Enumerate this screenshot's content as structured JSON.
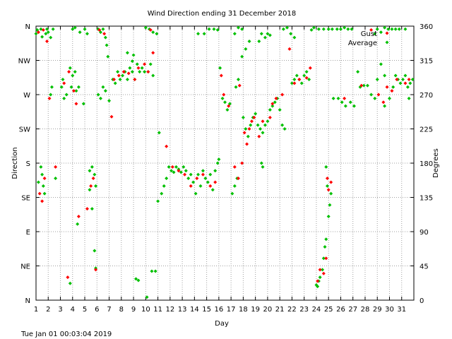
{
  "chart_data": {
    "type": "scatter",
    "title": "Wind Direction ending 31 December 2018",
    "xlabel": "Day",
    "ylabel_left": "Direction",
    "ylabel_right": "Degrees",
    "footer": "Tue Jan 01 00:03:04 2019",
    "xlim": [
      1,
      32
    ],
    "ylim": [
      0,
      360
    ],
    "x_ticks": [
      "1",
      "2",
      "3",
      "4",
      "5",
      "6",
      "7",
      "8",
      "9",
      "10",
      "11",
      "12",
      "13",
      "14",
      "15",
      "16",
      "17",
      "18",
      "19",
      "20",
      "21",
      "22",
      "23",
      "24",
      "25",
      "26",
      "27",
      "28",
      "29",
      "30",
      "31"
    ],
    "y_ticks_left": [
      "N",
      "NE",
      "E",
      "SE",
      "S",
      "SW",
      "W",
      "NW",
      "N"
    ],
    "y_ticks_right": [
      "0",
      "45",
      "90",
      "135",
      "180",
      "225",
      "270",
      "315",
      "360"
    ],
    "grid": true,
    "legend_placement": "top-right",
    "series": [
      {
        "name": "Gust",
        "color": "#ff0000",
        "points": [
          [
            1.2,
            352
          ],
          [
            1.6,
            355
          ],
          [
            1.9,
            340
          ],
          [
            1.3,
            140
          ],
          [
            1.5,
            130
          ],
          [
            1.7,
            160
          ],
          [
            2.1,
            265
          ],
          [
            2.6,
            175
          ],
          [
            3.3,
            285
          ],
          [
            3.7,
            300
          ],
          [
            3.6,
            30
          ],
          [
            4.1,
            275
          ],
          [
            4.3,
            258
          ],
          [
            4.5,
            110
          ],
          [
            5.2,
            120
          ],
          [
            5.5,
            150
          ],
          [
            5.7,
            160
          ],
          [
            5.9,
            40
          ],
          [
            6.2,
            355
          ],
          [
            6.6,
            350
          ],
          [
            7.2,
            241
          ],
          [
            7.4,
            290
          ],
          [
            7.8,
            295
          ],
          [
            8.2,
            300
          ],
          [
            8.6,
            298
          ],
          [
            9.1,
            290
          ],
          [
            9.4,
            305
          ],
          [
            9.9,
            310
          ],
          [
            10.2,
            300
          ],
          [
            10.6,
            325
          ],
          [
            10.4,
            355
          ],
          [
            11.7,
            202
          ],
          [
            12.2,
            175
          ],
          [
            12.7,
            170
          ],
          [
            13.2,
            165
          ],
          [
            13.7,
            150
          ],
          [
            14.2,
            160
          ],
          [
            14.7,
            165
          ],
          [
            15.3,
            150
          ],
          [
            15.7,
            155
          ],
          [
            16.2,
            295
          ],
          [
            16.4,
            270
          ],
          [
            16.8,
            255
          ],
          [
            17.3,
            175
          ],
          [
            17.6,
            160
          ],
          [
            17.7,
            282
          ],
          [
            17.9,
            180
          ],
          [
            18.1,
            220
          ],
          [
            18.3,
            205
          ],
          [
            18.5,
            225
          ],
          [
            18.7,
            235
          ],
          [
            18.9,
            240
          ],
          [
            19.3,
            215
          ],
          [
            19.6,
            235
          ],
          [
            20.2,
            240
          ],
          [
            20.4,
            258
          ],
          [
            20.7,
            265
          ],
          [
            21.2,
            270
          ],
          [
            21.8,
            330
          ],
          [
            22.2,
            285
          ],
          [
            22.6,
            290
          ],
          [
            23.2,
            292
          ],
          [
            23.5,
            305
          ],
          [
            24.1,
            25
          ],
          [
            24.3,
            40
          ],
          [
            24.6,
            35
          ],
          [
            24.8,
            55
          ],
          [
            25.0,
            145
          ],
          [
            25.2,
            155
          ],
          [
            24.9,
            160
          ],
          [
            26.3,
            265
          ],
          [
            27.7,
            282
          ],
          [
            28.5,
            355
          ],
          [
            29.1,
            270
          ],
          [
            29.5,
            260
          ],
          [
            29.8,
            280
          ],
          [
            30.2,
            275
          ],
          [
            30.6,
            290
          ],
          [
            31.3,
            285
          ],
          [
            31.6,
            290
          ]
        ]
      },
      {
        "name": "Average",
        "color": "#00c000",
        "points": [
          [
            1.0,
            350
          ],
          [
            1.1,
            355
          ],
          [
            1.4,
            356
          ],
          [
            1.5,
            346
          ],
          [
            1.8,
            350
          ],
          [
            1.9,
            356
          ],
          [
            2.0,
            352
          ],
          [
            2.2,
            345
          ],
          [
            2.4,
            356
          ],
          [
            1.4,
            175
          ],
          [
            1.5,
            165
          ],
          [
            1.6,
            150
          ],
          [
            1.7,
            140
          ],
          [
            1.2,
            155
          ],
          [
            2.6,
            160
          ],
          [
            2.2,
            270
          ],
          [
            2.3,
            280
          ],
          [
            3.1,
            280
          ],
          [
            3.2,
            290
          ],
          [
            3.5,
            270
          ],
          [
            3.8,
            305
          ],
          [
            3.9,
            280
          ],
          [
            3.3,
            265
          ],
          [
            4.0,
            295
          ],
          [
            4.2,
            300
          ],
          [
            4.3,
            275
          ],
          [
            4.5,
            280
          ],
          [
            4.4,
            100
          ],
          [
            3.8,
            22
          ],
          [
            4.0,
            356
          ],
          [
            4.2,
            358
          ],
          [
            4.6,
            352
          ],
          [
            5.0,
            356
          ],
          [
            5.2,
            350
          ],
          [
            4.9,
            258
          ],
          [
            5.4,
            170
          ],
          [
            5.6,
            175
          ],
          [
            5.8,
            165
          ],
          [
            5.9,
            150
          ],
          [
            5.4,
            145
          ],
          [
            5.6,
            120
          ],
          [
            5.8,
            65
          ],
          [
            5.9,
            42
          ],
          [
            6.1,
            356
          ],
          [
            6.3,
            352
          ],
          [
            6.5,
            356
          ],
          [
            6.7,
            345
          ],
          [
            6.8,
            335
          ],
          [
            6.9,
            320
          ],
          [
            6.1,
            270
          ],
          [
            6.3,
            265
          ],
          [
            6.5,
            280
          ],
          [
            6.7,
            275
          ],
          [
            7.0,
            262
          ],
          [
            7.3,
            290
          ],
          [
            7.5,
            285
          ],
          [
            7.7,
            300
          ],
          [
            7.9,
            290
          ],
          [
            8.1,
            295
          ],
          [
            8.3,
            300
          ],
          [
            8.5,
            290
          ],
          [
            8.7,
            305
          ],
          [
            8.9,
            300
          ],
          [
            9.1,
            290
          ],
          [
            9.3,
            310
          ],
          [
            9.5,
            300
          ],
          [
            9.7,
            305
          ],
          [
            9.9,
            300
          ],
          [
            9.0,
            322
          ],
          [
            8.5,
            325
          ],
          [
            8.9,
            314
          ],
          [
            9.2,
            28
          ],
          [
            9.4,
            26
          ],
          [
            10.0,
            358
          ],
          [
            10.3,
            356
          ],
          [
            10.6,
            352
          ],
          [
            10.1,
            4
          ],
          [
            10.5,
            38
          ],
          [
            10.8,
            38
          ],
          [
            10.2,
            300
          ],
          [
            10.4,
            310
          ],
          [
            10.6,
            295
          ],
          [
            10.9,
            350
          ],
          [
            11.1,
            220
          ],
          [
            11.0,
            130
          ],
          [
            11.3,
            140
          ],
          [
            11.5,
            150
          ],
          [
            11.7,
            160
          ],
          [
            11.9,
            175
          ],
          [
            12.1,
            170
          ],
          [
            12.3,
            168
          ],
          [
            12.5,
            175
          ],
          [
            12.7,
            172
          ],
          [
            12.9,
            168
          ],
          [
            13.1,
            175
          ],
          [
            13.3,
            170
          ],
          [
            13.5,
            160
          ],
          [
            13.7,
            165
          ],
          [
            13.9,
            155
          ],
          [
            14.1,
            140
          ],
          [
            14.3,
            165
          ],
          [
            14.5,
            150
          ],
          [
            14.7,
            170
          ],
          [
            14.9,
            160
          ],
          [
            15.1,
            155
          ],
          [
            15.3,
            165
          ],
          [
            15.5,
            145
          ],
          [
            15.7,
            170
          ],
          [
            15.9,
            180
          ],
          [
            16.0,
            185
          ],
          [
            14.3,
            350
          ],
          [
            14.8,
            350
          ],
          [
            15.2,
            356
          ],
          [
            15.6,
            356
          ],
          [
            15.9,
            355
          ],
          [
            16.1,
            305
          ],
          [
            16.3,
            265
          ],
          [
            16.5,
            260
          ],
          [
            16.7,
            250
          ],
          [
            16.9,
            258
          ],
          [
            17.1,
            140
          ],
          [
            17.3,
            150
          ],
          [
            17.5,
            160
          ],
          [
            17.3,
            350
          ],
          [
            17.6,
            358
          ],
          [
            17.9,
            356
          ],
          [
            17.4,
            280
          ],
          [
            17.6,
            290
          ],
          [
            17.9,
            320
          ],
          [
            18.0,
            240
          ],
          [
            18.2,
            225
          ],
          [
            18.4,
            215
          ],
          [
            18.6,
            230
          ],
          [
            18.8,
            240
          ],
          [
            19.0,
            245
          ],
          [
            19.2,
            230
          ],
          [
            19.4,
            225
          ],
          [
            19.6,
            220
          ],
          [
            19.8,
            230
          ],
          [
            19.5,
            180
          ],
          [
            19.6,
            175
          ],
          [
            18.2,
            330
          ],
          [
            18.5,
            340
          ],
          [
            19.3,
            340
          ],
          [
            19.5,
            350
          ],
          [
            19.8,
            345
          ],
          [
            20.0,
            350
          ],
          [
            20.2,
            348
          ],
          [
            20.0,
            235
          ],
          [
            20.2,
            250
          ],
          [
            20.4,
            255
          ],
          [
            20.6,
            260
          ],
          [
            20.8,
            265
          ],
          [
            21.0,
            250
          ],
          [
            21.2,
            230
          ],
          [
            21.4,
            225
          ],
          [
            21.3,
            356
          ],
          [
            21.6,
            358
          ],
          [
            21.9,
            350
          ],
          [
            22.0,
            285
          ],
          [
            22.2,
            290
          ],
          [
            22.4,
            295
          ],
          [
            22.6,
            290
          ],
          [
            22.8,
            285
          ],
          [
            23.0,
            295
          ],
          [
            23.2,
            300
          ],
          [
            23.4,
            290
          ],
          [
            23.6,
            355
          ],
          [
            23.8,
            358
          ],
          [
            22.2,
            345
          ],
          [
            24.0,
            20
          ],
          [
            24.1,
            18
          ],
          [
            24.2,
            25
          ],
          [
            24.3,
            30
          ],
          [
            24.5,
            40
          ],
          [
            24.6,
            55
          ],
          [
            24.7,
            70
          ],
          [
            24.8,
            80
          ],
          [
            25.0,
            110
          ],
          [
            25.1,
            125
          ],
          [
            25.2,
            140
          ],
          [
            24.8,
            175
          ],
          [
            24.9,
            150
          ],
          [
            24.2,
            356
          ],
          [
            24.6,
            356
          ],
          [
            25.0,
            356
          ],
          [
            25.3,
            356
          ],
          [
            25.7,
            356
          ],
          [
            26.0,
            356
          ],
          [
            26.3,
            358
          ],
          [
            26.6,
            356
          ],
          [
            26.9,
            356
          ],
          [
            25.4,
            265
          ],
          [
            25.8,
            265
          ],
          [
            26.1,
            260
          ],
          [
            26.4,
            255
          ],
          [
            26.8,
            260
          ],
          [
            27.1,
            255
          ],
          [
            27.4,
            300
          ],
          [
            27.6,
            280
          ],
          [
            27.9,
            282
          ],
          [
            28.2,
            282
          ],
          [
            28.5,
            270
          ],
          [
            28.8,
            265
          ],
          [
            29.0,
            290
          ],
          [
            29.3,
            310
          ],
          [
            29.6,
            295
          ],
          [
            28.8,
            350
          ],
          [
            29.0,
            356
          ],
          [
            29.3,
            352
          ],
          [
            29.6,
            358
          ],
          [
            29.9,
            356
          ],
          [
            30.2,
            356
          ],
          [
            30.5,
            356
          ],
          [
            30.8,
            356
          ],
          [
            29.6,
            255
          ],
          [
            30.0,
            265
          ],
          [
            30.3,
            280
          ],
          [
            30.5,
            295
          ],
          [
            30.7,
            290
          ],
          [
            30.9,
            285
          ],
          [
            31.1,
            290
          ],
          [
            31.3,
            295
          ],
          [
            31.5,
            280
          ],
          [
            31.7,
            285
          ],
          [
            31.9,
            290
          ],
          [
            31.3,
            356
          ],
          [
            31.6,
            265
          ]
        ]
      }
    ]
  }
}
